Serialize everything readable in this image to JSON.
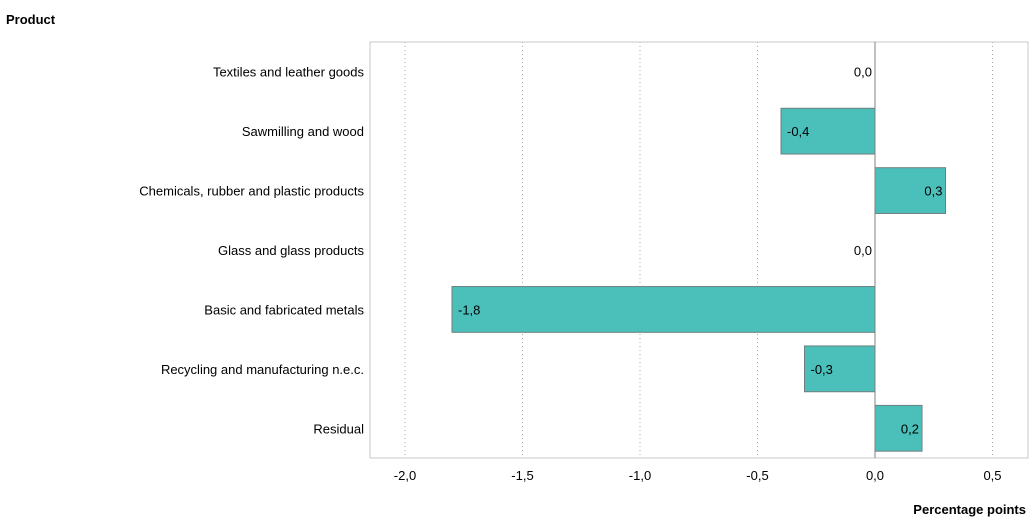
{
  "chart_data": {
    "type": "bar",
    "orientation": "horizontal",
    "title": "",
    "ylabel": "Product",
    "xlabel": "Percentage points",
    "categories": [
      "Textiles and leather goods",
      "Sawmilling and wood",
      "Chemicals, rubber and plastic products",
      "Glass and glass products",
      "Basic and fabricated metals",
      "Recycling and manufacturing n.e.c.",
      "Residual"
    ],
    "values": [
      0.0,
      -0.4,
      0.3,
      0.0,
      -1.8,
      -0.3,
      0.2
    ],
    "value_labels": [
      "0,0",
      "-0,4",
      "0,3",
      "0,0",
      "-1,8",
      "-0,3",
      "0,2"
    ],
    "xlim": [
      -2.2,
      0.65
    ],
    "xticks": [
      -2.0,
      -1.5,
      -1.0,
      -0.5,
      0.0,
      0.5
    ],
    "xtick_labels": [
      "-2,0",
      "-1,5",
      "-1,0",
      "-0,5",
      "0,0",
      "0,5"
    ],
    "grid": "vertical dotted",
    "bar_color": "#4bbfba",
    "bar_edge_color": "#6e7f7e"
  }
}
